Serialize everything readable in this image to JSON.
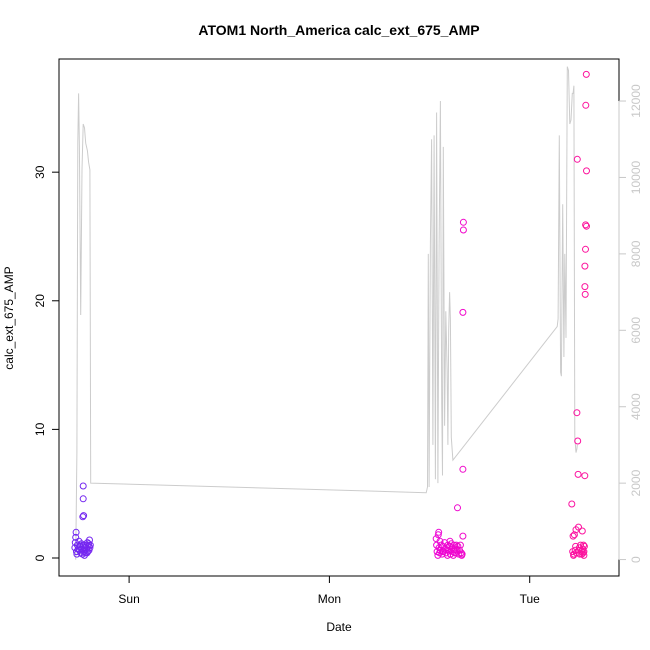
{
  "chart_data": {
    "type": "scatter",
    "title": "ATOM1 North_America calc_ext_675_AMP",
    "xlabel": "Date",
    "ylabel": "calc_ext_675_AMP",
    "x_ticks": [
      "Sun",
      "Mon",
      "Tue"
    ],
    "x_tick_hours": [
      24,
      48,
      72
    ],
    "xlim_hours": [
      15.6,
      82.7
    ],
    "ylim": [
      -1.4,
      38.8
    ],
    "y_ticks": [
      0,
      10,
      20,
      30
    ],
    "y2lim": [
      -430,
      13100
    ],
    "y2_ticks": [
      0,
      2000,
      4000,
      6000,
      8000,
      10000,
      12000
    ],
    "colors": {
      "line": "#cccccc",
      "start": "#6a2af0",
      "mid": "#e600f0",
      "end": "#ff1690"
    },
    "series": [
      {
        "type": "points",
        "points": [
          [
            17.5,
            0.8
          ],
          [
            17.55,
            1.2
          ],
          [
            17.6,
            1.6
          ],
          [
            17.65,
            2.0
          ],
          [
            17.7,
            0.5
          ],
          [
            17.8,
            1.0
          ],
          [
            17.9,
            0.7
          ],
          [
            18.0,
            1.3
          ],
          [
            18.05,
            0.6
          ],
          [
            18.1,
            0.9
          ],
          [
            18.2,
            0.4
          ],
          [
            18.3,
            1.1
          ],
          [
            18.35,
            0.7
          ],
          [
            18.4,
            0.3
          ],
          [
            18.45,
            3.2
          ],
          [
            18.5,
            4.6
          ],
          [
            18.5,
            5.6
          ],
          [
            18.55,
            3.3
          ],
          [
            18.6,
            0.5
          ],
          [
            18.6,
            1.0
          ],
          [
            18.7,
            0.8
          ],
          [
            18.75,
            0.4
          ],
          [
            18.8,
            1.0
          ],
          [
            18.9,
            0.7
          ],
          [
            19.0,
            1.2
          ],
          [
            19.05,
            0.5
          ],
          [
            19.1,
            0.9
          ],
          [
            19.2,
            0.6
          ],
          [
            19.25,
            1.4
          ],
          [
            19.3,
            0.8
          ],
          [
            19.35,
            1.0
          ],
          [
            17.75,
            0.3
          ],
          [
            18.15,
            1.0
          ],
          [
            18.65,
            0.2
          ],
          [
            18.95,
            0.4
          ],
          [
            19.15,
            1.1
          ],
          [
            60.8,
            1.5
          ],
          [
            60.85,
            1.0
          ],
          [
            60.9,
            0.5
          ],
          [
            61.0,
            0.2
          ],
          [
            61.05,
            1.8
          ],
          [
            61.1,
            2.0
          ],
          [
            61.15,
            0.8
          ],
          [
            61.2,
            0.4
          ],
          [
            61.3,
            0.6
          ],
          [
            61.4,
            1.0
          ],
          [
            61.5,
            0.3
          ],
          [
            61.6,
            0.9
          ],
          [
            61.7,
            0.5
          ],
          [
            61.8,
            1.2
          ],
          [
            61.9,
            0.7
          ],
          [
            62.0,
            0.4
          ],
          [
            62.1,
            0.8
          ],
          [
            62.2,
            1.0
          ],
          [
            62.3,
            0.6
          ],
          [
            62.4,
            0.9
          ],
          [
            62.5,
            0.3
          ],
          [
            62.6,
            1.1
          ],
          [
            62.7,
            0.8
          ],
          [
            62.8,
            0.5
          ],
          [
            62.9,
            1.0
          ],
          [
            63.0,
            0.4
          ],
          [
            63.1,
            0.7
          ],
          [
            63.2,
            1.0
          ],
          [
            63.3,
            0.6
          ],
          [
            63.35,
            3.9
          ],
          [
            63.4,
            0.9
          ],
          [
            63.5,
            0.3
          ],
          [
            63.6,
            0.6
          ],
          [
            63.7,
            1.0
          ],
          [
            63.8,
            0.4
          ],
          [
            63.85,
            0.2
          ],
          [
            63.9,
            0.3
          ],
          [
            64.0,
            1.7
          ],
          [
            64.0,
            6.9
          ],
          [
            64.0,
            19.1
          ],
          [
            64.05,
            25.5
          ],
          [
            64.05,
            26.1
          ],
          [
            61.25,
            1.3
          ],
          [
            61.55,
            0.5
          ],
          [
            62.15,
            0.2
          ],
          [
            62.45,
            1.3
          ],
          [
            62.85,
            0.2
          ],
          [
            63.15,
            0.4
          ],
          [
            77.05,
            4.2
          ],
          [
            77.15,
            0.5
          ],
          [
            77.2,
            1.7
          ],
          [
            77.3,
            0.3
          ],
          [
            77.35,
            1.8
          ],
          [
            77.45,
            0.6
          ],
          [
            77.5,
            0.9
          ],
          [
            77.55,
            2.2
          ],
          [
            77.6,
            0.4
          ],
          [
            77.65,
            11.3
          ],
          [
            77.7,
            31.0
          ],
          [
            77.75,
            9.1
          ],
          [
            77.8,
            6.5
          ],
          [
            77.85,
            2.4
          ],
          [
            77.9,
            0.6
          ],
          [
            78.0,
            0.3
          ],
          [
            78.1,
            1.0
          ],
          [
            78.2,
            0.5
          ],
          [
            78.3,
            2.1
          ],
          [
            78.35,
            0.7
          ],
          [
            78.4,
            0.4
          ],
          [
            78.5,
            0.2
          ],
          [
            78.55,
            0.9
          ],
          [
            78.6,
            6.4
          ],
          [
            78.62,
            21.1
          ],
          [
            78.62,
            22.7
          ],
          [
            78.65,
            20.5
          ],
          [
            78.68,
            24.0
          ],
          [
            78.7,
            25.9
          ],
          [
            78.8,
            25.8
          ],
          [
            78.72,
            35.2
          ],
          [
            78.78,
            37.6
          ],
          [
            78.8,
            30.1
          ],
          [
            78.5,
            0.5
          ],
          [
            77.95,
            0.8
          ],
          [
            78.25,
            0.3
          ],
          [
            78.45,
            1.0
          ],
          [
            77.25,
            0.2
          ]
        ]
      },
      {
        "type": "line",
        "axis": "right",
        "points": [
          [
            17.6,
            0
          ],
          [
            17.75,
            2800
          ],
          [
            17.85,
            10900
          ],
          [
            17.95,
            12200
          ],
          [
            18.05,
            10800
          ],
          [
            18.2,
            6400
          ],
          [
            18.35,
            10200
          ],
          [
            18.5,
            11400
          ],
          [
            18.65,
            11300
          ],
          [
            18.8,
            10900
          ],
          [
            19.0,
            10700
          ],
          [
            19.15,
            10400
          ],
          [
            19.3,
            10200
          ],
          [
            19.4,
            2000
          ],
          [
            59.6,
            1750
          ],
          [
            59.75,
            1900
          ],
          [
            59.85,
            8000
          ],
          [
            59.95,
            1900
          ],
          [
            60.1,
            8300
          ],
          [
            60.25,
            11000
          ],
          [
            60.4,
            3000
          ],
          [
            60.55,
            11100
          ],
          [
            60.7,
            2100
          ],
          [
            60.85,
            11700
          ],
          [
            61.0,
            2000
          ],
          [
            61.15,
            8200
          ],
          [
            61.3,
            12000
          ],
          [
            61.45,
            4100
          ],
          [
            61.55,
            2200
          ],
          [
            61.65,
            10800
          ],
          [
            61.8,
            3500
          ],
          [
            61.95,
            6500
          ],
          [
            62.1,
            5000
          ],
          [
            62.2,
            3000
          ],
          [
            62.3,
            6000
          ],
          [
            62.4,
            7000
          ],
          [
            62.5,
            6300
          ],
          [
            62.6,
            3200
          ],
          [
            62.8,
            2600
          ],
          [
            75.3,
            6100
          ],
          [
            75.4,
            6300
          ],
          [
            75.55,
            11100
          ],
          [
            75.7,
            4900
          ],
          [
            75.8,
            4800
          ],
          [
            75.95,
            9300
          ],
          [
            76.1,
            5300
          ],
          [
            76.2,
            8000
          ],
          [
            76.35,
            5800
          ],
          [
            76.5,
            12900
          ],
          [
            76.65,
            12800
          ],
          [
            76.8,
            11400
          ],
          [
            76.95,
            11500
          ],
          [
            77.1,
            12200
          ],
          [
            77.2,
            12200
          ],
          [
            77.3,
            12400
          ],
          [
            77.4,
            3200
          ],
          [
            77.55,
            2800
          ],
          [
            77.65,
            2900
          ],
          [
            77.7,
            3000
          ]
        ]
      }
    ]
  }
}
